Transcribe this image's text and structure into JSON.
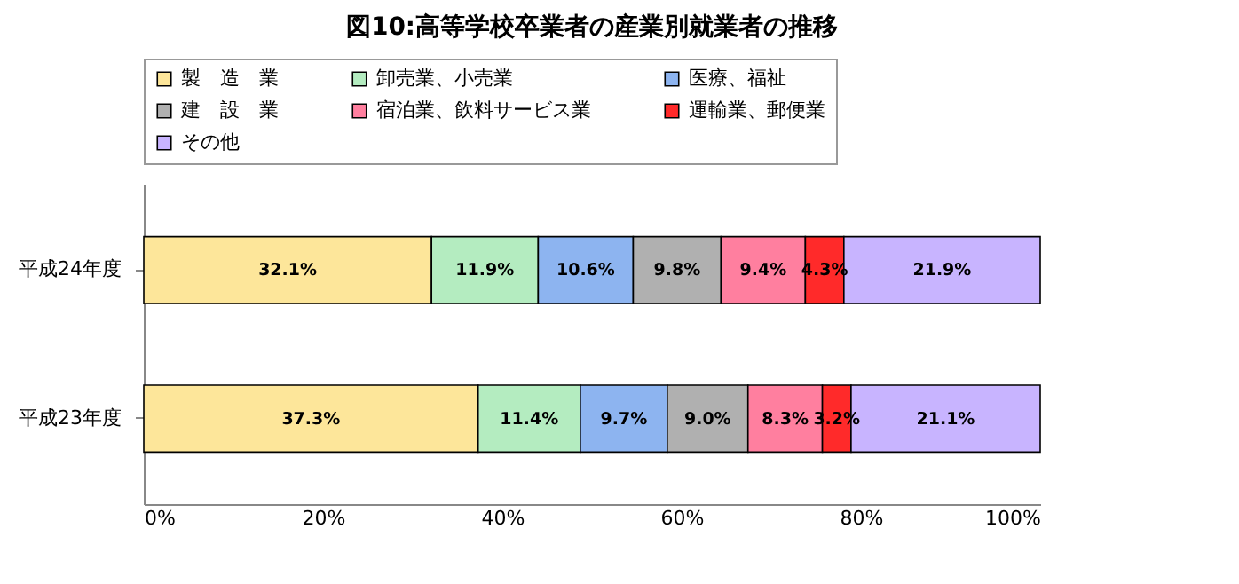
{
  "chart_data": {
    "type": "bar",
    "orientation": "horizontal",
    "stacked": true,
    "title": "図10:高等学校卒業者の産業別就業者の推移",
    "categories": [
      "平成24年度",
      "平成23年度"
    ],
    "series": [
      {
        "name": "製　造　業",
        "color": "#fde69a",
        "values": [
          32.1,
          37.3
        ],
        "value_labels": [
          "32.1%",
          "37.3%"
        ]
      },
      {
        "name": "卸売業、小売業",
        "color": "#b4ecc0",
        "values": [
          11.9,
          11.4
        ],
        "value_labels": [
          "11.9%",
          "11.4%"
        ]
      },
      {
        "name": "医療、福祉",
        "color": "#8db4f0",
        "values": [
          10.6,
          9.7
        ],
        "value_labels": [
          "10.6%",
          "9.7%"
        ]
      },
      {
        "name": "建　設　業",
        "color": "#b0b0b0",
        "values": [
          9.8,
          9.0
        ],
        "value_labels": [
          "9.8%",
          "9.0%"
        ]
      },
      {
        "name": "宿泊業、飲料サービス業",
        "color": "#ff7f9f",
        "values": [
          9.4,
          8.3
        ],
        "value_labels": [
          "9.4%",
          "8.3%"
        ]
      },
      {
        "name": "運輸業、郵便業",
        "color": "#ff2a2a",
        "values": [
          4.3,
          3.2
        ],
        "value_labels": [
          "4.3%",
          "3.2%"
        ]
      },
      {
        "name": "その他",
        "color": "#c8b4ff",
        "values": [
          21.9,
          21.1
        ],
        "value_labels": [
          "21.9%",
          "21.1%"
        ]
      }
    ],
    "xlim": [
      0,
      100
    ],
    "xticks": [
      {
        "value": 0,
        "label": "0%"
      },
      {
        "value": 20,
        "label": "20%"
      },
      {
        "value": 40,
        "label": "40%"
      },
      {
        "value": 60,
        "label": "60%"
      },
      {
        "value": 80,
        "label": "80%"
      },
      {
        "value": 100,
        "label": "100%"
      }
    ],
    "legend": "top",
    "grid": false
  }
}
